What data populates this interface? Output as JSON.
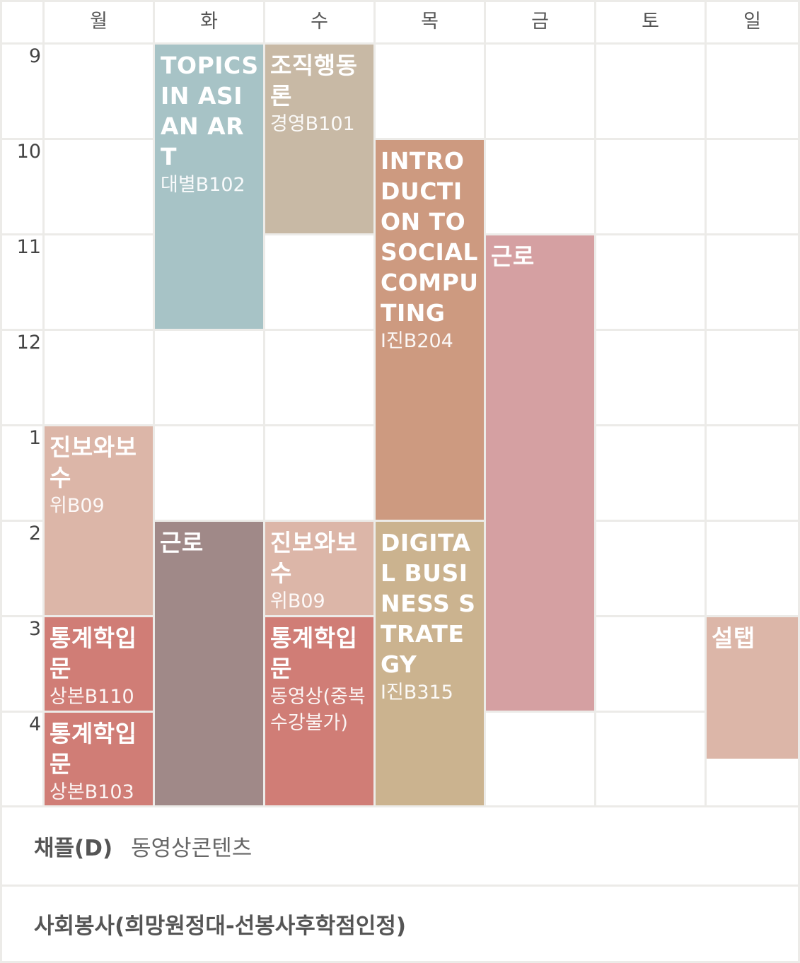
{
  "days": [
    "월",
    "화",
    "수",
    "목",
    "금",
    "토",
    "일"
  ],
  "hours": [
    "9",
    "10",
    "11",
    "12",
    "1",
    "2",
    "3",
    "4"
  ],
  "courses": {
    "topics_asian_art": {
      "title": "TOPICS IN ASI AN ART",
      "room": "대별B102",
      "color": "#a7c3c6"
    },
    "org_behavior": {
      "title": "조직행동론",
      "room": "경영B101",
      "color": "#c8b9a5"
    },
    "intro_social_computing": {
      "title": "INTRODUCTION TO SOCIAL COMPUTING",
      "room": "I진B204",
      "color": "#cd9a80"
    },
    "work_fri": {
      "title": "근로",
      "room": "",
      "color": "#d5a0a2"
    },
    "progressive_mon": {
      "title": "진보와보수",
      "room": "위B09",
      "color": "#dcb6a8"
    },
    "work_tue": {
      "title": "근로",
      "room": "",
      "color": "#a08988"
    },
    "progressive_wed": {
      "title": "진보와보수",
      "room": "위B09",
      "color": "#dcb6a8"
    },
    "digital_business": {
      "title": "DIGITAL BUSINESS STRATEGY",
      "room": "I진B315",
      "color": "#cbb38f"
    },
    "stats_mon_3": {
      "title": "통계학입문",
      "room": "상본B110",
      "color": "#d07d76"
    },
    "stats_wed": {
      "title": "통계학입문",
      "room": "동영상(중복수강불가)",
      "color": "#d07d76"
    },
    "stats_mon_4": {
      "title": "통계학입문",
      "room": "상본B103",
      "color": "#d07d76"
    },
    "seoltap": {
      "title": "설탭",
      "room": "",
      "color": "#dcb6a8"
    }
  },
  "extra_courses": [
    {
      "title": "채플(D)",
      "subtitle": "동영상콘텐츠"
    },
    {
      "title": "사회봉사(희망원정대-선봉사후학점인정)",
      "subtitle": ""
    }
  ]
}
